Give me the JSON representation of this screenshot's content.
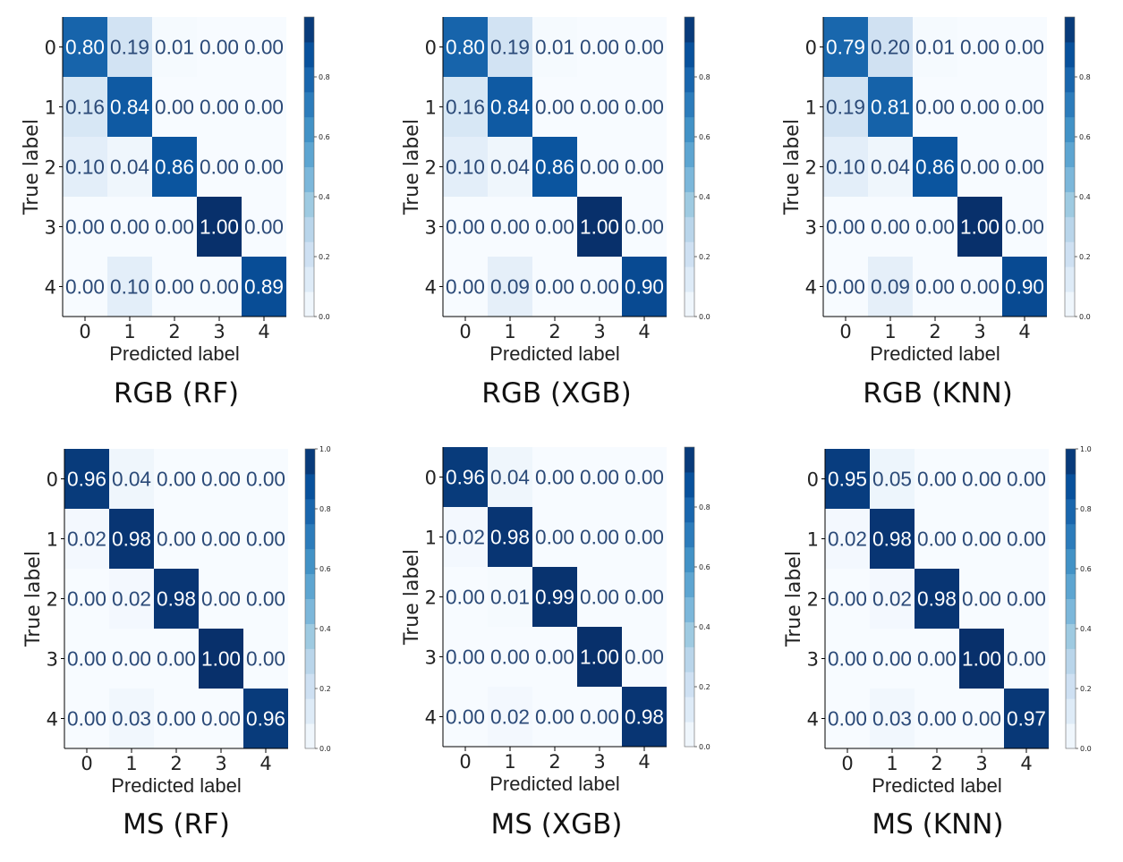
{
  "colors": {
    "low": "#f7fbff",
    "high": "#08306b",
    "text_dark": "#2b4a78",
    "text_light": "#ffffff"
  },
  "chart_data": [
    {
      "type": "heatmap",
      "title": "RGB (RF)",
      "xlabel": "Predicted label",
      "ylabel": "True label",
      "x_categories": [
        "0",
        "1",
        "2",
        "3",
        "4"
      ],
      "y_categories": [
        "0",
        "1",
        "2",
        "3",
        "4"
      ],
      "colorbar": {
        "ticks": [
          "0.0",
          "0.2",
          "0.4",
          "0.6",
          "0.8"
        ],
        "max": 1.0
      },
      "matrix": [
        [
          "0.80",
          "0.19",
          "0.01",
          "0.00",
          "0.00"
        ],
        [
          "0.16",
          "0.84",
          "0.00",
          "0.00",
          "0.00"
        ],
        [
          "0.10",
          "0.04",
          "0.86",
          "0.00",
          "0.00"
        ],
        [
          "0.00",
          "0.00",
          "0.00",
          "1.00",
          "0.00"
        ],
        [
          "0.00",
          "0.10",
          "0.00",
          "0.00",
          "0.89"
        ]
      ]
    },
    {
      "type": "heatmap",
      "title": "RGB (XGB)",
      "xlabel": "Predicted label",
      "ylabel": "True label",
      "x_categories": [
        "0",
        "1",
        "2",
        "3",
        "4"
      ],
      "y_categories": [
        "0",
        "1",
        "2",
        "3",
        "4"
      ],
      "colorbar": {
        "ticks": [
          "0.0",
          "0.2",
          "0.4",
          "0.6",
          "0.8"
        ],
        "max": 1.0
      },
      "matrix": [
        [
          "0.80",
          "0.19",
          "0.01",
          "0.00",
          "0.00"
        ],
        [
          "0.16",
          "0.84",
          "0.00",
          "0.00",
          "0.00"
        ],
        [
          "0.10",
          "0.04",
          "0.86",
          "0.00",
          "0.00"
        ],
        [
          "0.00",
          "0.00",
          "0.00",
          "1.00",
          "0.00"
        ],
        [
          "0.00",
          "0.09",
          "0.00",
          "0.00",
          "0.90"
        ]
      ]
    },
    {
      "type": "heatmap",
      "title": "RGB (KNN)",
      "xlabel": "Predicted label",
      "ylabel": "True label",
      "x_categories": [
        "0",
        "1",
        "2",
        "3",
        "4"
      ],
      "y_categories": [
        "0",
        "1",
        "2",
        "3",
        "4"
      ],
      "colorbar": {
        "ticks": [
          "0.0",
          "0.2",
          "0.4",
          "0.6",
          "0.8"
        ],
        "max": 1.0
      },
      "matrix": [
        [
          "0.79",
          "0.20",
          "0.01",
          "0.00",
          "0.00"
        ],
        [
          "0.19",
          "0.81",
          "0.00",
          "0.00",
          "0.00"
        ],
        [
          "0.10",
          "0.04",
          "0.86",
          "0.00",
          "0.00"
        ],
        [
          "0.00",
          "0.00",
          "0.00",
          "1.00",
          "0.00"
        ],
        [
          "0.00",
          "0.09",
          "0.00",
          "0.00",
          "0.90"
        ]
      ]
    },
    {
      "type": "heatmap",
      "title": "MS (RF)",
      "xlabel": "Predicted label",
      "ylabel": "True label",
      "x_categories": [
        "0",
        "1",
        "2",
        "3",
        "4"
      ],
      "y_categories": [
        "0",
        "1",
        "2",
        "3",
        "4"
      ],
      "colorbar": {
        "ticks": [
          "0.0",
          "0.2",
          "0.4",
          "0.6",
          "0.8",
          "1.0"
        ],
        "max": 1.0
      },
      "matrix": [
        [
          "0.96",
          "0.04",
          "0.00",
          "0.00",
          "0.00"
        ],
        [
          "0.02",
          "0.98",
          "0.00",
          "0.00",
          "0.00"
        ],
        [
          "0.00",
          "0.02",
          "0.98",
          "0.00",
          "0.00"
        ],
        [
          "0.00",
          "0.00",
          "0.00",
          "1.00",
          "0.00"
        ],
        [
          "0.00",
          "0.03",
          "0.00",
          "0.00",
          "0.96"
        ]
      ]
    },
    {
      "type": "heatmap",
      "title": "MS (XGB)",
      "xlabel": "Predicted label",
      "ylabel": "True label",
      "x_categories": [
        "0",
        "1",
        "2",
        "3",
        "4"
      ],
      "y_categories": [
        "0",
        "1",
        "2",
        "3",
        "4"
      ],
      "colorbar": {
        "ticks": [
          "0.0",
          "0.2",
          "0.4",
          "0.6",
          "0.8"
        ],
        "max": 1.0
      },
      "matrix": [
        [
          "0.96",
          "0.04",
          "0.00",
          "0.00",
          "0.00"
        ],
        [
          "0.02",
          "0.98",
          "0.00",
          "0.00",
          "0.00"
        ],
        [
          "0.00",
          "0.01",
          "0.99",
          "0.00",
          "0.00"
        ],
        [
          "0.00",
          "0.00",
          "0.00",
          "1.00",
          "0.00"
        ],
        [
          "0.00",
          "0.02",
          "0.00",
          "0.00",
          "0.98"
        ]
      ]
    },
    {
      "type": "heatmap",
      "title": "MS (KNN)",
      "xlabel": "Predicted label",
      "ylabel": "True label",
      "x_categories": [
        "0",
        "1",
        "2",
        "3",
        "4"
      ],
      "y_categories": [
        "0",
        "1",
        "2",
        "3",
        "4"
      ],
      "colorbar": {
        "ticks": [
          "0.0",
          "0.2",
          "0.4",
          "0.6",
          "0.8",
          "1.0"
        ],
        "max": 1.0
      },
      "matrix": [
        [
          "0.95",
          "0.05",
          "0.00",
          "0.00",
          "0.00"
        ],
        [
          "0.02",
          "0.98",
          "0.00",
          "0.00",
          "0.00"
        ],
        [
          "0.00",
          "0.02",
          "0.98",
          "0.00",
          "0.00"
        ],
        [
          "0.00",
          "0.00",
          "0.00",
          "1.00",
          "0.00"
        ],
        [
          "0.00",
          "0.03",
          "0.00",
          "0.00",
          "0.97"
        ]
      ]
    }
  ]
}
